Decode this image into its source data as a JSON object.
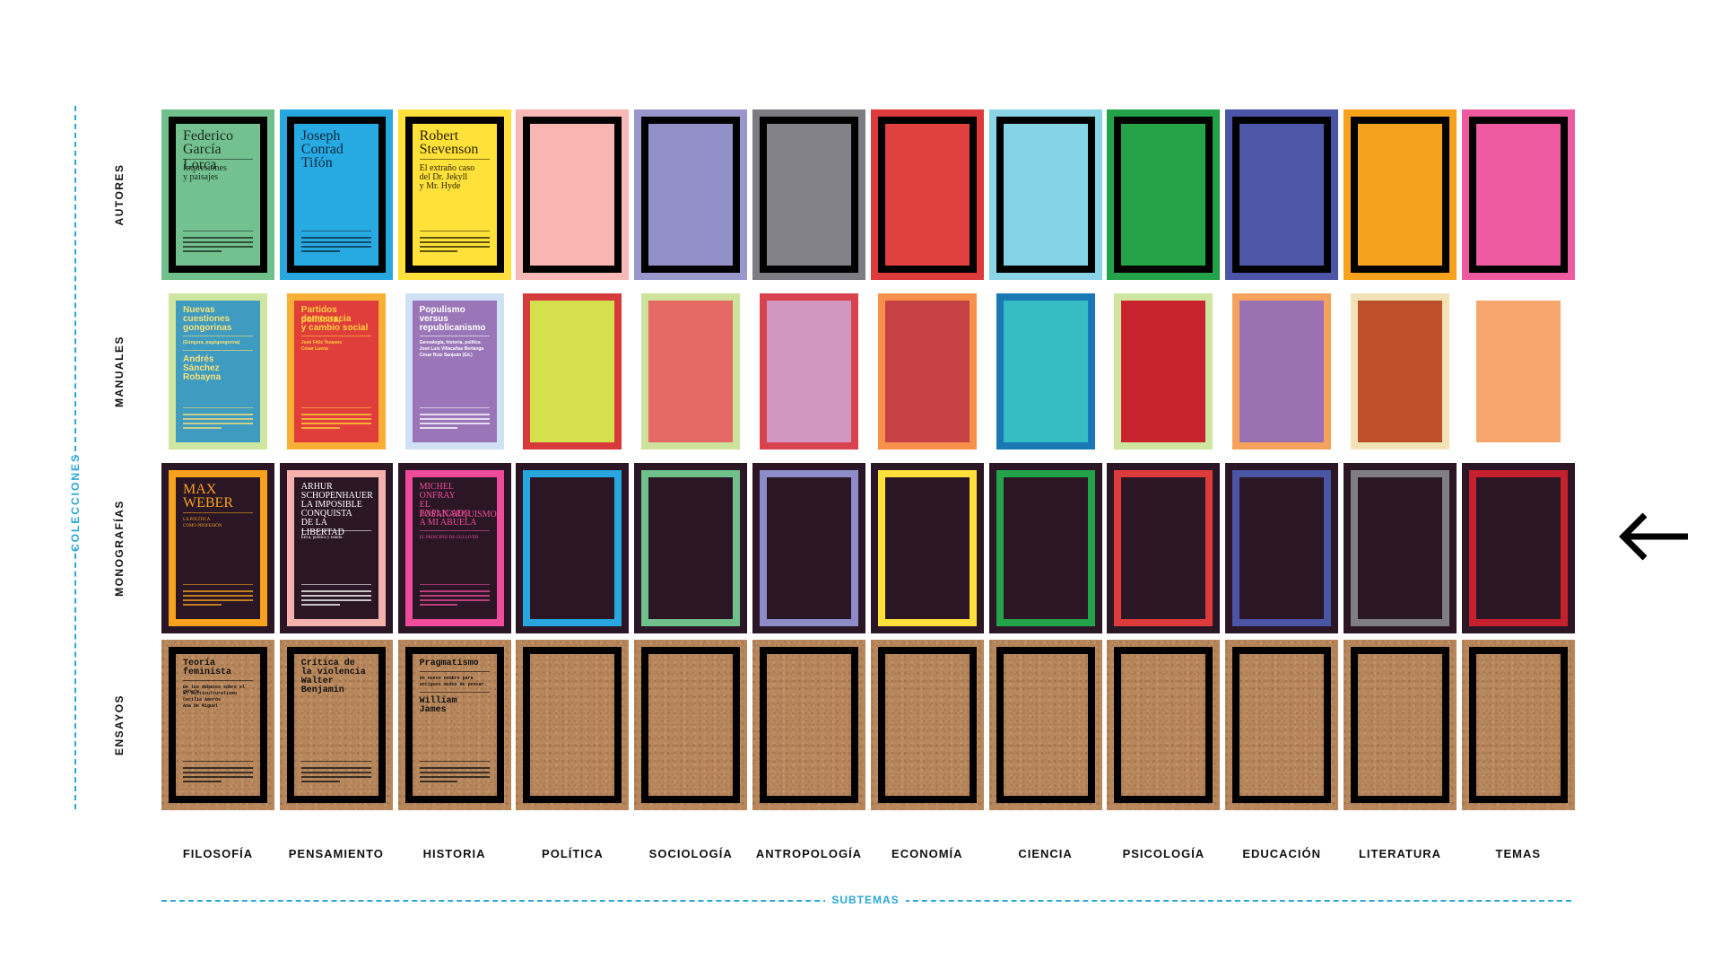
{
  "axes": {
    "vertical_label": "COLECCIONES",
    "horizontal_label": "SUBTEMAS"
  },
  "rows": [
    {
      "label": "AUTORES"
    },
    {
      "label": "MANUALES"
    },
    {
      "label": "MONOGRAFÍAS"
    },
    {
      "label": "ENSAYOS"
    }
  ],
  "columns": [
    {
      "label": "FILOSOFÍA"
    },
    {
      "label": "PENSAMIENTO"
    },
    {
      "label": "HISTORIA"
    },
    {
      "label": "POLÍTICA"
    },
    {
      "label": "SOCIOLOGÍA"
    },
    {
      "label": "ANTROPOLOGÍA"
    },
    {
      "label": "ECONOMÍA"
    },
    {
      "label": "CIENCIA"
    },
    {
      "label": "PSICOLOGÍA"
    },
    {
      "label": "EDUCACIÓN"
    },
    {
      "label": "LITERATURA"
    },
    {
      "label": "TEMAS"
    }
  ],
  "covers": [
    [
      {
        "outer": "#ffffff",
        "frame": "#000000",
        "inner": "#73c18e",
        "ink": "#1a2a20",
        "font": "serif",
        "lines": [
          {
            "text": "Federico",
            "size": "big"
          },
          {
            "text": "García Lorca",
            "size": "big"
          },
          {
            "text": "Impresiones",
            "size": "mid"
          },
          {
            "text": "y paisajes",
            "size": "mid"
          }
        ]
      },
      {
        "outer": "#ffffff",
        "frame": "#000000",
        "inner": "#27aae1",
        "ink": "#0b2a40",
        "font": "serif",
        "lines": [
          {
            "text": "Joseph",
            "size": "big"
          },
          {
            "text": "Conrad",
            "size": "big"
          },
          {
            "text": "Tifón",
            "size": "big"
          }
        ]
      },
      {
        "outer": "#ffffff",
        "frame": "#000000",
        "inner": "#ffe13a",
        "ink": "#2a2400",
        "font": "serif",
        "lines": [
          {
            "text": "Robert",
            "size": "big"
          },
          {
            "text": "Stevenson",
            "size": "big"
          },
          {
            "text": "El extraño caso",
            "size": "mid"
          },
          {
            "text": "del Dr. Jekyll",
            "size": "mid"
          },
          {
            "text": "y Mr. Hyde",
            "size": "mid"
          }
        ]
      },
      {
        "outer": "#ffffff",
        "frame": "#000000",
        "inner": "#f8b5b2"
      },
      {
        "outer": "#ffffff",
        "frame": "#000000",
        "inner": "#9191c7"
      },
      {
        "outer": "#ffffff",
        "frame": "#000000",
        "inner": "#838189"
      },
      {
        "outer": "#ffffff",
        "frame": "#000000",
        "inner": "#e0403e"
      },
      {
        "outer": "#ffffff",
        "frame": "#000000",
        "inner": "#86d2e6"
      },
      {
        "outer": "#ffffff",
        "frame": "#000000",
        "inner": "#27a347"
      },
      {
        "outer": "#ffffff",
        "frame": "#000000",
        "inner": "#4c57a8"
      },
      {
        "outer": "#ffffff",
        "frame": "#000000",
        "inner": "#f5a21f"
      },
      {
        "outer": "#ffffff",
        "frame": "#000000",
        "inner": "#ef5aa0"
      }
    ],
    [
      {
        "outer": "#ffffff",
        "frame": "#cfe6a0",
        "inner": "#3f9bbf",
        "ink": "#f6e27a",
        "font": "sans",
        "lines": [
          {
            "text": "Nuevas",
            "size": "mid"
          },
          {
            "text": "cuestiones",
            "size": "mid"
          },
          {
            "text": "gongorinas",
            "size": "mid"
          },
          {
            "text": "(Góngora, pagógongorina)",
            "size": "small"
          },
          {
            "text": "Andrés",
            "size": "mid"
          },
          {
            "text": "Sánchez",
            "size": "mid"
          },
          {
            "text": "Robayna",
            "size": "mid"
          }
        ]
      },
      {
        "outer": "#ffffff",
        "frame": "#f7b035",
        "inner": "#e03e3a",
        "ink": "#ffd23f",
        "font": "sans",
        "lines": [
          {
            "text": "Partidos políticos,",
            "size": "mid"
          },
          {
            "text": "democracia",
            "size": "mid"
          },
          {
            "text": "y cambio social",
            "size": "mid"
          },
          {
            "text": "José Félix Tezanos",
            "size": "small"
          },
          {
            "text": "César Luena",
            "size": "small"
          }
        ]
      },
      {
        "outer": "#ffffff",
        "frame": "#cfe2f3",
        "inner": "#9a75b8",
        "ink": "#ffffff",
        "font": "sans",
        "lines": [
          {
            "text": "Populismo",
            "size": "mid"
          },
          {
            "text": "versus",
            "size": "mid"
          },
          {
            "text": "republicanismo",
            "size": "mid"
          },
          {
            "text": "Genealogía, historia, política",
            "size": "small"
          },
          {
            "text": "José Luis Villacañas Berlanga",
            "size": "small"
          },
          {
            "text": "César Ruiz Sanjuán (Ed.)",
            "size": "small"
          }
        ]
      },
      {
        "outer": "#ffffff",
        "frame": "#d63a3a",
        "inner": "#d4e04c"
      },
      {
        "outer": "#ffffff",
        "frame": "#cde29a",
        "inner": "#e56a66"
      },
      {
        "outer": "#ffffff",
        "frame": "#d8434f",
        "inner": "#d296c3"
      },
      {
        "outer": "#ffffff",
        "frame": "#f6904a",
        "inner": "#c54143"
      },
      {
        "outer": "#ffffff",
        "frame": "#1a78b4",
        "inner": "#34bec3"
      },
      {
        "outer": "#ffffff",
        "frame": "#cfe6a0",
        "inner": "#c9242e"
      },
      {
        "outer": "#ffffff",
        "frame": "#f7a25c",
        "inner": "#9a72b1"
      },
      {
        "outer": "#ffffff",
        "frame": "#f1e3b5",
        "inner": "#bd4f2a"
      },
      {
        "outer": "#ffffff",
        "frame": "#ffffff",
        "inner": "#f6a56d"
      }
    ],
    [
      {
        "outer": "#2a1625",
        "frame": "#f7a11c",
        "inner": "#2a1625",
        "ink": "#f7a11c",
        "font": "serif",
        "lines": [
          {
            "text": "MAX",
            "size": "big"
          },
          {
            "text": "WEBER",
            "size": "big"
          },
          {
            "text": "LA POLÍTICA",
            "size": "small"
          },
          {
            "text": "COMO PROFESIÓN",
            "size": "small"
          }
        ]
      },
      {
        "outer": "#2a1625",
        "frame": "#f5b1ad",
        "inner": "#2a1625",
        "ink": "#ffffff",
        "font": "serif",
        "lines": [
          {
            "text": "ARHUR",
            "size": "mid"
          },
          {
            "text": "SCHOPENHAUER",
            "size": "mid"
          },
          {
            "text": "LA IMPOSIBLE",
            "size": "mid"
          },
          {
            "text": "CONQUISTA",
            "size": "mid"
          },
          {
            "text": "DE LA LIBERTAD",
            "size": "mid"
          },
          {
            "text": "Ética, política y estado.",
            "size": "small"
          }
        ]
      },
      {
        "outer": "#2a1625",
        "frame": "#ee4c9a",
        "inner": "#2a1625",
        "ink": "#ee4c9a",
        "font": "serif",
        "lines": [
          {
            "text": "MICHEL",
            "size": "mid"
          },
          {
            "text": "ONFRAY",
            "size": "mid"
          },
          {
            "text": "EL POSANARQUISMO",
            "size": "mid"
          },
          {
            "text": "EXPLICADO",
            "size": "mid"
          },
          {
            "text": "A MI ABUELA",
            "size": "mid"
          },
          {
            "text": "EL PRINCIPIO DE GULLIVER",
            "size": "small"
          }
        ]
      },
      {
        "outer": "#2a1625",
        "frame": "#27a6e0",
        "inner": "#2a1625"
      },
      {
        "outer": "#2a1625",
        "frame": "#6fc08a",
        "inner": "#2a1625"
      },
      {
        "outer": "#2a1625",
        "frame": "#8d8bc8",
        "inner": "#2a1625"
      },
      {
        "outer": "#2a1625",
        "frame": "#ffe03a",
        "inner": "#2a1625"
      },
      {
        "outer": "#2a1625",
        "frame": "#24a24a",
        "inner": "#2a1625"
      },
      {
        "outer": "#2a1625",
        "frame": "#dd3a3c",
        "inner": "#2a1625"
      },
      {
        "outer": "#2a1625",
        "frame": "#4a55a6",
        "inner": "#2a1625"
      },
      {
        "outer": "#2a1625",
        "frame": "#7f7d85",
        "inner": "#2a1625"
      },
      {
        "outer": "#2a1625",
        "frame": "#c4202d",
        "inner": "#2a1625"
      }
    ],
    [
      {
        "outer": "kraft",
        "frame": "#000000",
        "inner": "kraft",
        "ink": "#111111",
        "font": "mono",
        "lines": [
          {
            "text": "Teoría",
            "size": "mid"
          },
          {
            "text": "feminista",
            "size": "mid"
          },
          {
            "text": "De los debates sobre el género",
            "size": "small"
          },
          {
            "text": "al multiculturalismo",
            "size": "small"
          },
          {
            "text": "Cecilia Amorós",
            "size": "small"
          },
          {
            "text": "Ana De Miguel",
            "size": "small"
          }
        ]
      },
      {
        "outer": "kraft",
        "frame": "#000000",
        "inner": "kraft",
        "ink": "#111111",
        "font": "mono",
        "lines": [
          {
            "text": "Crítica de",
            "size": "mid"
          },
          {
            "text": "la violencia",
            "size": "mid"
          },
          {
            "text": "Walter",
            "size": "mid"
          },
          {
            "text": "Benjamin",
            "size": "mid"
          }
        ]
      },
      {
        "outer": "kraft",
        "frame": "#000000",
        "inner": "kraft",
        "ink": "#111111",
        "font": "mono",
        "lines": [
          {
            "text": "Pragmatismo",
            "size": "mid"
          },
          {
            "text": "Un nuevo nombre para",
            "size": "small"
          },
          {
            "text": "antiguos modos de pensar.",
            "size": "small"
          },
          {
            "text": "William",
            "size": "mid"
          },
          {
            "text": "James",
            "size": "mid"
          }
        ]
      },
      {
        "outer": "kraft",
        "frame": "#000000",
        "inner": "kraft"
      },
      {
        "outer": "kraft",
        "frame": "#000000",
        "inner": "kraft"
      },
      {
        "outer": "kraft",
        "frame": "#000000",
        "inner": "kraft"
      },
      {
        "outer": "kraft",
        "frame": "#000000",
        "inner": "kraft"
      },
      {
        "outer": "kraft",
        "frame": "#000000",
        "inner": "kraft"
      },
      {
        "outer": "kraft",
        "frame": "#000000",
        "inner": "kraft"
      },
      {
        "outer": "kraft",
        "frame": "#000000",
        "inner": "kraft"
      },
      {
        "outer": "kraft",
        "frame": "#000000",
        "inner": "kraft"
      },
      {
        "outer": "kraft",
        "frame": "#000000",
        "inner": "kraft"
      }
    ]
  ],
  "row_outer_colors": {
    "autores": [
      "#6fc08a",
      "#27a6e0",
      "#ffe03a",
      "#f8b8b5",
      "#9a97cc",
      "#7e7c83",
      "#dd3a3c",
      "#8bd3e6",
      "#24a24a",
      "#4a55a6",
      "#f7a11c",
      "#ee5aa0"
    ]
  },
  "arrow": {
    "icon": "arrow-left-icon"
  }
}
